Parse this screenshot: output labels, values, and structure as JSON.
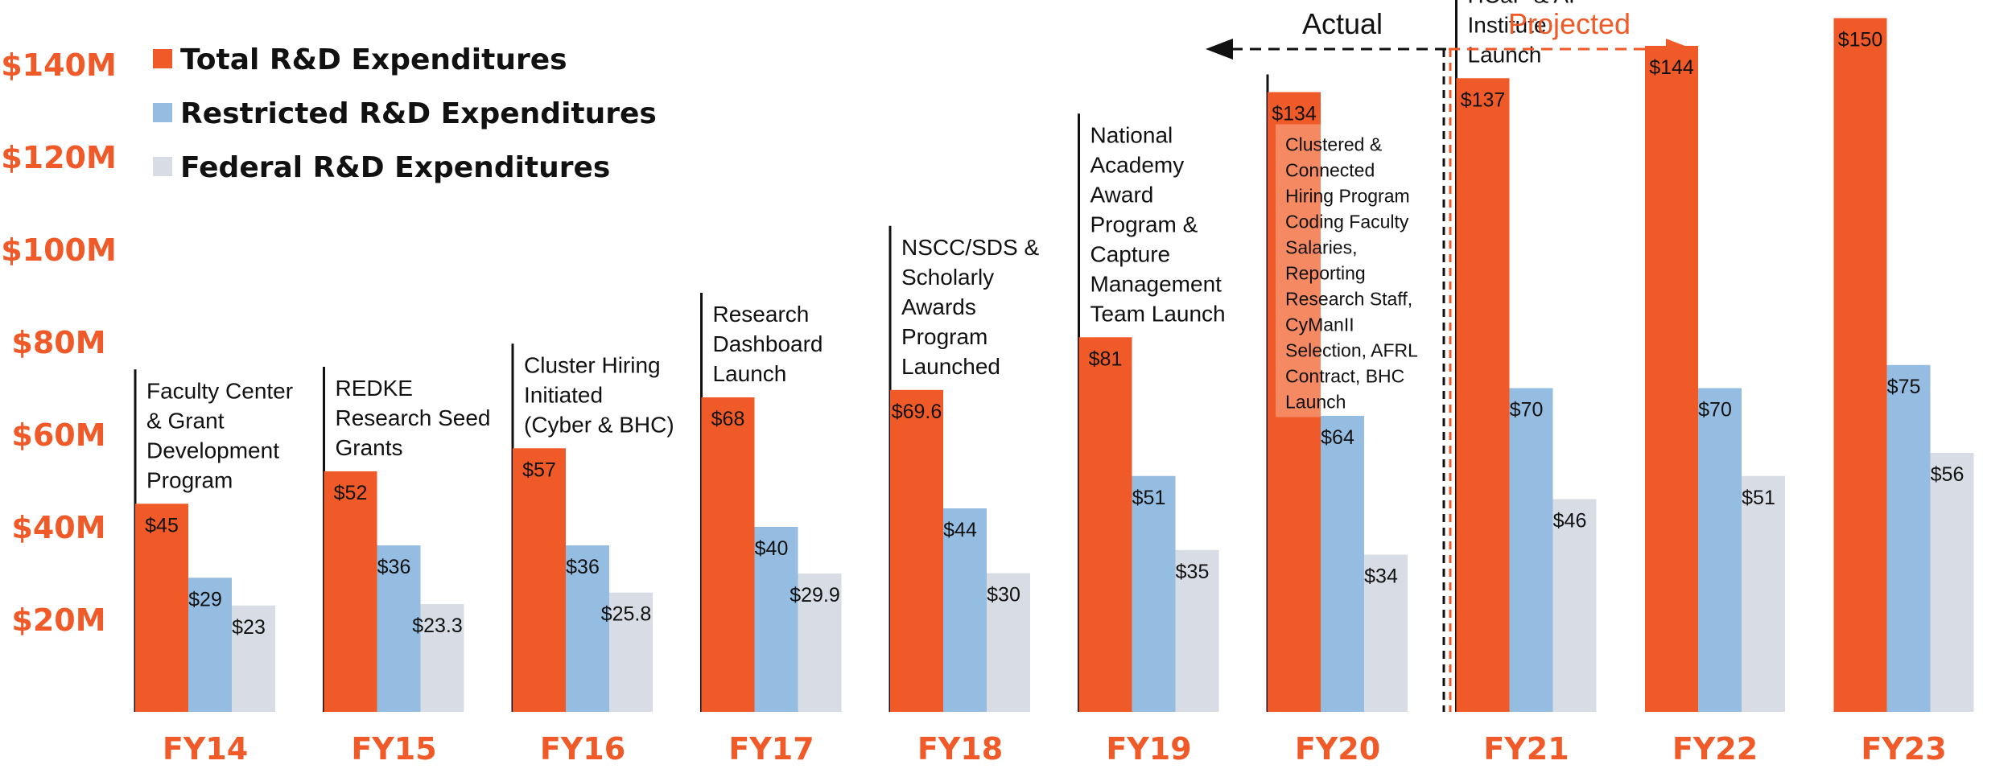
{
  "colors": {
    "total": "#f05a28",
    "restricted": "#95bde2",
    "federal": "#d8dde5",
    "axis_text": "#f05a28",
    "actual": "#111111",
    "projected": "#f05a28"
  },
  "legend": {
    "total": "Total R&D Expenditures",
    "restricted": "Restricted R&D Expenditures",
    "federal": "Federal R&D Expenditures"
  },
  "period": {
    "actual": "Actual",
    "projected": "Projected"
  },
  "chart_data": {
    "type": "bar",
    "title": "",
    "xlabel": "",
    "ylabel": "",
    "ylim": [
      0,
      150
    ],
    "ytick_labels": [
      "$20M",
      "$40M",
      "$60M",
      "$80M",
      "$100M",
      "$120M",
      "$140M"
    ],
    "ytick_values": [
      20,
      40,
      60,
      80,
      100,
      120,
      140
    ],
    "categories": [
      "FY14",
      "FY15",
      "FY16",
      "FY17",
      "FY18",
      "FY19",
      "FY20",
      "FY21",
      "FY22",
      "FY23"
    ],
    "series": [
      {
        "name": "Total R&D Expenditures",
        "values": [
          45,
          52,
          57,
          68,
          69.6,
          81,
          134,
          137,
          144,
          150
        ],
        "labels": [
          "$45",
          "$52",
          "$57",
          "$68",
          "$69.6",
          "$81",
          "$134",
          "$137",
          "$144",
          "$150"
        ]
      },
      {
        "name": "Restricted R&D Expenditures",
        "values": [
          29,
          36,
          36,
          40,
          44,
          51,
          64,
          70,
          70,
          75
        ],
        "labels": [
          "$29",
          "$36",
          "$36",
          "$40",
          "$44",
          "$51",
          "$64",
          "$70",
          "$70",
          "$75"
        ]
      },
      {
        "name": "Federal R&D Expenditures",
        "values": [
          23,
          23.3,
          25.8,
          29.9,
          30,
          35,
          34,
          46,
          51,
          56
        ],
        "labels": [
          "$23",
          "$23.3",
          "$25.8",
          "$29.9",
          "$30",
          "$35",
          "$34",
          "$46",
          "$51",
          "$56"
        ]
      }
    ],
    "annotations": [
      {
        "category": "FY14",
        "lines": [
          "Faculty Center",
          "& Grant",
          "Development",
          "Program"
        ]
      },
      {
        "category": "FY15",
        "lines": [
          "REDKE",
          "Research Seed",
          "Grants"
        ]
      },
      {
        "category": "FY16",
        "lines": [
          "Cluster Hiring",
          "Initiated",
          "(Cyber & BHC)"
        ]
      },
      {
        "category": "FY17",
        "lines": [
          "Research",
          "Dashboard",
          "Launch"
        ]
      },
      {
        "category": "FY18",
        "lines": [
          "NSCC/SDS &",
          "Scholarly",
          "Awards",
          "Program",
          "Launched"
        ]
      },
      {
        "category": "FY19",
        "lines": [
          "National",
          "Academy",
          "Award",
          "Program &",
          "Capture",
          "Management",
          "Team Launch"
        ]
      },
      {
        "category": "FY20",
        "lines": [
          "Clustered &",
          "Connected",
          "Hiring Program",
          "Coding Faculty",
          "Salaries,",
          "Reporting",
          "Research Staff,",
          "CyManII",
          "Selection, AFRL",
          "Contract, BHC",
          "Launch"
        ]
      },
      {
        "category": "FY21",
        "lines": [
          "HCaP & AI",
          "Institute",
          "Launch"
        ]
      }
    ],
    "legend_position": "top-left",
    "grid": false
  }
}
